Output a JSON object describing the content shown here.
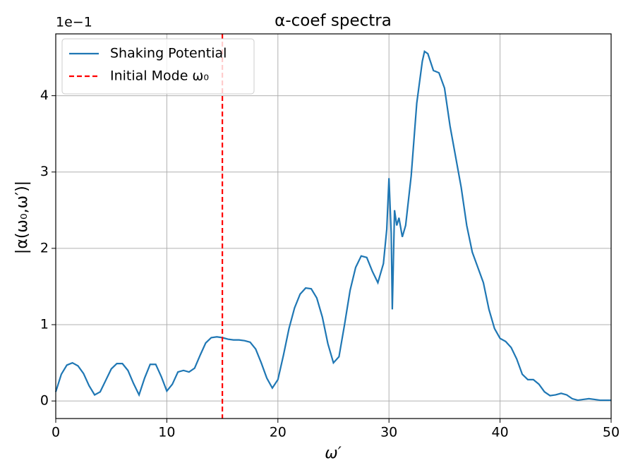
{
  "chart_data": {
    "type": "line",
    "title": "α-coef spectra",
    "x_label": "ω′",
    "y_label": "|α(ω₀,ω′)|",
    "y_offset_label": "1e−1",
    "x": [
      0,
      0.5,
      1,
      1.5,
      2,
      2.5,
      3,
      3.5,
      4,
      4.5,
      5,
      5.5,
      6,
      6.5,
      7,
      7.5,
      8,
      8.5,
      9,
      9.5,
      10,
      10.5,
      11,
      11.5,
      12,
      12.5,
      13,
      13.5,
      14,
      14.5,
      15,
      15.5,
      16,
      16.5,
      17,
      17.5,
      18,
      18.5,
      19,
      19.5,
      20,
      20.5,
      21,
      21.5,
      22,
      22.5,
      23,
      23.5,
      24,
      24.5,
      25,
      25.5,
      26,
      26.5,
      27,
      27.5,
      28,
      28.5,
      29,
      29.5,
      29.8,
      30,
      30.2,
      30.3,
      30.5,
      30.7,
      30.9,
      31.2,
      31.5,
      32,
      32.5,
      33,
      33.2,
      33.5,
      34,
      34.5,
      35,
      35.5,
      36,
      36.5,
      37,
      37.5,
      38,
      38.5,
      39,
      39.5,
      40,
      40.5,
      41,
      41.5,
      42,
      42.5,
      43,
      43.5,
      44,
      44.5,
      45,
      45.5,
      46,
      46.5,
      47,
      47.5,
      48,
      48.5,
      49,
      50
    ],
    "series": [
      {
        "name": "Shaking Potential",
        "color": "#1f77b4",
        "values": [
          0.12,
          0.35,
          0.47,
          0.5,
          0.46,
          0.36,
          0.2,
          0.08,
          0.12,
          0.27,
          0.42,
          0.49,
          0.49,
          0.4,
          0.23,
          0.08,
          0.3,
          0.48,
          0.48,
          0.32,
          0.13,
          0.22,
          0.38,
          0.4,
          0.38,
          0.43,
          0.6,
          0.76,
          0.83,
          0.84,
          0.83,
          0.81,
          0.8,
          0.8,
          0.79,
          0.77,
          0.68,
          0.5,
          0.3,
          0.17,
          0.28,
          0.6,
          0.95,
          1.22,
          1.4,
          1.48,
          1.47,
          1.35,
          1.1,
          0.75,
          0.5,
          0.58,
          1.0,
          1.45,
          1.75,
          1.9,
          1.88,
          1.7,
          1.55,
          1.8,
          2.25,
          2.92,
          2.2,
          1.2,
          2.5,
          2.3,
          2.4,
          2.15,
          2.3,
          2.95,
          3.9,
          4.45,
          4.58,
          4.55,
          4.33,
          4.3,
          4.1,
          3.6,
          3.2,
          2.8,
          2.3,
          1.95,
          1.75,
          1.55,
          1.2,
          0.95,
          0.82,
          0.78,
          0.7,
          0.55,
          0.35,
          0.28,
          0.28,
          0.22,
          0.12,
          0.07,
          0.08,
          0.1,
          0.08,
          0.03,
          0.01,
          0.02,
          0.03,
          0.02,
          0.01,
          0.01
        ]
      }
    ],
    "vlines": [
      {
        "name": "Initial Mode ω₀",
        "x": 15,
        "color": "#ff0000"
      }
    ],
    "xlim": [
      0,
      50
    ],
    "xticks": [
      0,
      10,
      20,
      30,
      40,
      50
    ],
    "ylim": [
      -0.23,
      4.81
    ],
    "yticks": [
      0,
      1,
      2,
      3,
      4
    ],
    "grid": true,
    "legend": "upper left"
  }
}
